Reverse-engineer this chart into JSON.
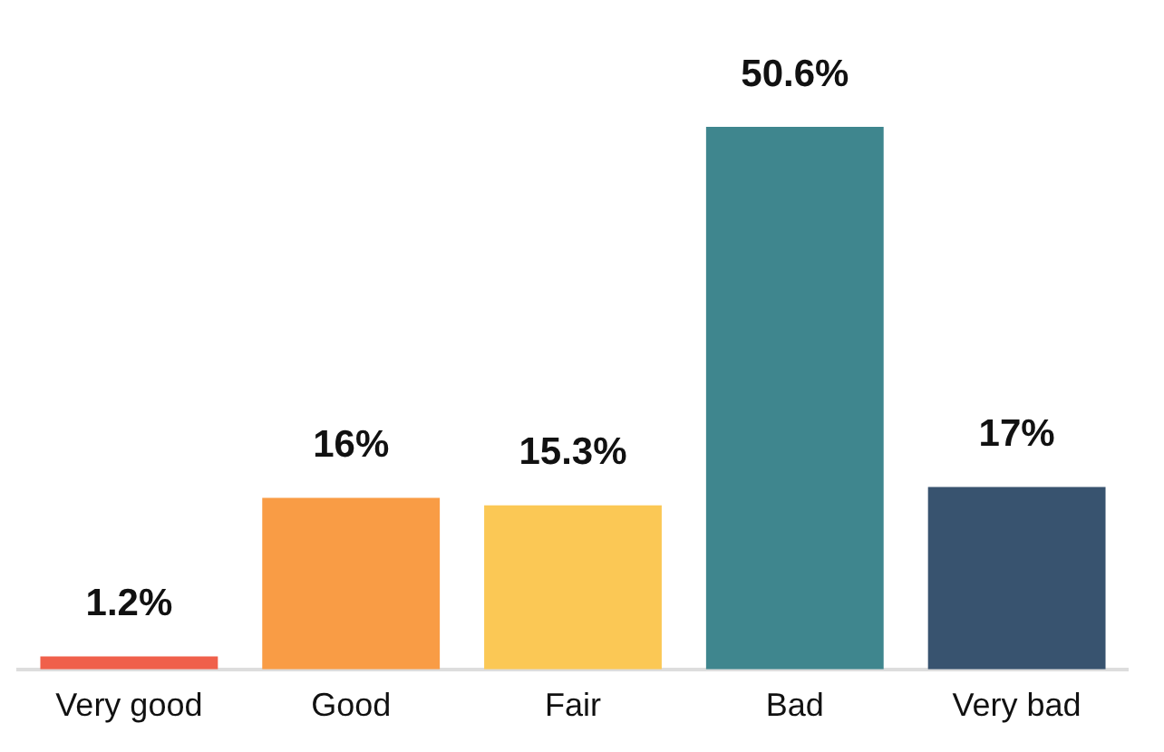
{
  "chart_data": {
    "type": "bar",
    "categories": [
      "Very good",
      "Good",
      "Fair",
      "Bad",
      "Very bad"
    ],
    "values": [
      1.2,
      16,
      15.3,
      50.6,
      17
    ],
    "colors": [
      "#f0604b",
      "#f99c45",
      "#fbc855",
      "#3f868e",
      "#38536f"
    ],
    "value_labels": [
      "1.2%",
      "16%",
      "15.3%",
      "50.6%",
      "17%"
    ],
    "grid": false,
    "legend": false
  }
}
